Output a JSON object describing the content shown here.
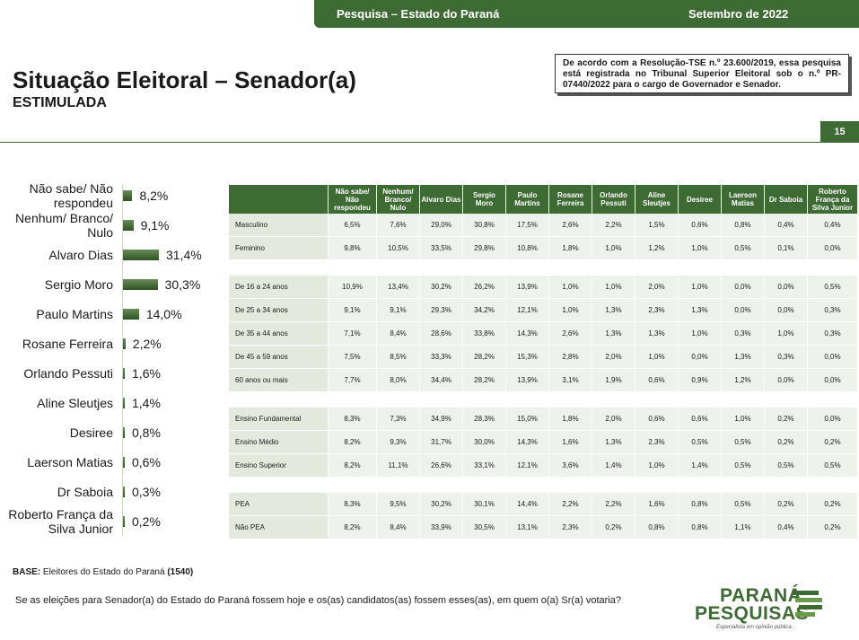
{
  "header": {
    "left": "Pesquisa – Estado do Paraná",
    "right": "Setembro de 2022"
  },
  "title": "Situação Eleitoral – Senador(a)",
  "subtitle": "ESTIMULADA",
  "notice": "De acordo com a Resolução-TSE n.º 23.600/2019, essa pesquisa está registrada no Tribunal Superior Eleitoral sob o n.º PR-07440/2022 para o cargo de Governador e Senador.",
  "page_number": "15",
  "chart_data": [
    {
      "type": "bar",
      "orientation": "horizontal",
      "categories": [
        "Não sabe/ Não respondeu",
        "Nenhum/ Branco/ Nulo",
        "Alvaro Dias",
        "Sergio Moro",
        "Paulo Martins",
        "Rosane Ferreira",
        "Orlando Pessuti",
        "Aline Sleutjes",
        "Desiree",
        "Laerson Matias",
        "Dr Saboia",
        "Roberto França da Silva Junior"
      ],
      "values": [
        8.2,
        9.1,
        31.4,
        30.3,
        14.0,
        2.2,
        1.6,
        1.4,
        0.8,
        0.6,
        0.3,
        0.2
      ],
      "value_labels": [
        "8,2%",
        "9,1%",
        "31,4%",
        "30,3%",
        "14,0%",
        "2,2%",
        "1,6%",
        "1,4%",
        "0,8%",
        "0,6%",
        "0,3%",
        "0,2%"
      ],
      "bar_color": "#3e6b34",
      "xlim": [
        0,
        31.4
      ]
    },
    {
      "type": "table",
      "columns": [
        "Não sabe/ Não respondeu",
        "Nenhum/ Branco/ Nulo",
        "Alvaro Dias",
        "Sergio Moro",
        "Paulo Martins",
        "Rosane Ferreira",
        "Orlando Pessuti",
        "Aline Sleutjes",
        "Desiree",
        "Laerson Matias",
        "Dr Saboia",
        "Roberto França da Silva Junior"
      ],
      "groups": [
        {
          "rows": [
            {
              "label": "Masculino",
              "values": [
                "6,5%",
                "7,6%",
                "29,0%",
                "30,8%",
                "17,5%",
                "2,6%",
                "2,2%",
                "1,5%",
                "0,6%",
                "0,8%",
                "0,4%",
                "0,4%"
              ]
            },
            {
              "label": "Feminino",
              "values": [
                "9,8%",
                "10,5%",
                "33,5%",
                "29,8%",
                "10,8%",
                "1,8%",
                "1,0%",
                "1,2%",
                "1,0%",
                "0,5%",
                "0,1%",
                "0,0%"
              ]
            }
          ]
        },
        {
          "rows": [
            {
              "label": "De 16 a 24 anos",
              "values": [
                "10,9%",
                "13,4%",
                "30,2%",
                "26,2%",
                "13,9%",
                "1,0%",
                "1,0%",
                "2,0%",
                "1,0%",
                "0,0%",
                "0,0%",
                "0,5%"
              ]
            },
            {
              "label": "De 25 a 34 anos",
              "values": [
                "9,1%",
                "9,1%",
                "29,3%",
                "34,2%",
                "12,1%",
                "1,0%",
                "1,3%",
                "2,3%",
                "1,3%",
                "0,0%",
                "0,0%",
                "0,3%"
              ]
            },
            {
              "label": "De 35 a 44 anos",
              "values": [
                "7,1%",
                "8,4%",
                "28,6%",
                "33,8%",
                "14,3%",
                "2,6%",
                "1,3%",
                "1,3%",
                "1,0%",
                "0,3%",
                "1,0%",
                "0,3%"
              ]
            },
            {
              "label": "De 45 a 59 anos",
              "values": [
                "7,5%",
                "8,5%",
                "33,3%",
                "28,2%",
                "15,3%",
                "2,8%",
                "2,0%",
                "1,0%",
                "0,0%",
                "1,3%",
                "0,3%",
                "0,0%"
              ]
            },
            {
              "label": "60 anos ou mais",
              "values": [
                "7,7%",
                "8,0%",
                "34,4%",
                "28,2%",
                "13,9%",
                "3,1%",
                "1,9%",
                "0,6%",
                "0,9%",
                "1,2%",
                "0,0%",
                "0,0%"
              ]
            }
          ]
        },
        {
          "rows": [
            {
              "label": "Ensino Fundamental",
              "values": [
                "8,3%",
                "7,3%",
                "34,9%",
                "28,3%",
                "15,0%",
                "1,8%",
                "2,0%",
                "0,6%",
                "0,6%",
                "1,0%",
                "0,2%",
                "0,0%"
              ]
            },
            {
              "label": "Ensino Médio",
              "values": [
                "8,2%",
                "9,3%",
                "31,7%",
                "30,0%",
                "14,3%",
                "1,6%",
                "1,3%",
                "2,3%",
                "0,5%",
                "0,5%",
                "0,2%",
                "0,2%"
              ]
            },
            {
              "label": "Ensino Superior",
              "values": [
                "8,2%",
                "11,1%",
                "26,6%",
                "33,1%",
                "12,1%",
                "3,6%",
                "1,4%",
                "1,0%",
                "1,4%",
                "0,5%",
                "0,5%",
                "0,5%"
              ]
            }
          ]
        },
        {
          "rows": [
            {
              "label": "PEA",
              "values": [
                "8,3%",
                "9,5%",
                "30,2%",
                "30,1%",
                "14,4%",
                "2,2%",
                "2,2%",
                "1,6%",
                "0,8%",
                "0,5%",
                "0,2%",
                "0,2%"
              ]
            },
            {
              "label": "Não PEA",
              "values": [
                "8,2%",
                "8,4%",
                "33,9%",
                "30,5%",
                "13,1%",
                "2,3%",
                "0,2%",
                "0,8%",
                "0,8%",
                "1,1%",
                "0,4%",
                "0,2%"
              ]
            }
          ]
        }
      ]
    }
  ],
  "base": {
    "prefix": "BASE:",
    "text": " Eleitores do Estado do Paraná ",
    "count": "(1540)"
  },
  "question": "Se as eleições para Senador(a) do Estado do Paraná fossem hoje e os(as) candidatos(as) fossem esses(as), em quem o(a) Sr(a) votaria?",
  "logo": {
    "line1": "PARANÁ",
    "line2": "PESQUISAS",
    "tagline": "Especialista em opinião pública."
  }
}
